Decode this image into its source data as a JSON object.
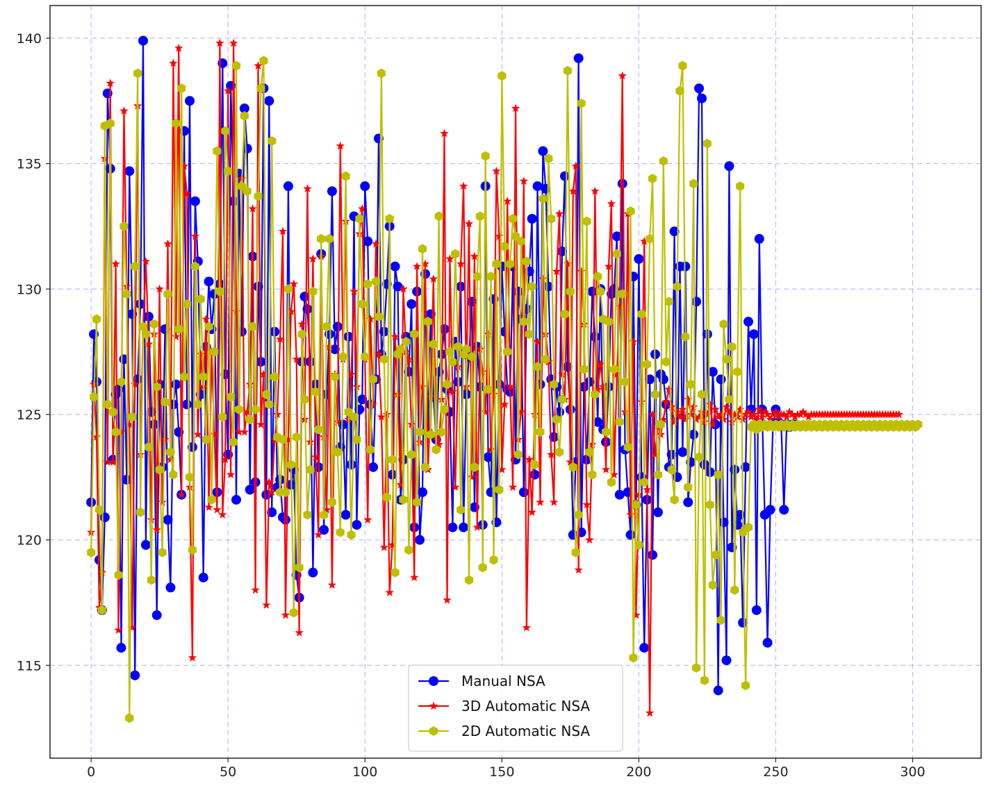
{
  "chart_data": {
    "type": "line",
    "title": "",
    "xlabel": "",
    "ylabel": "",
    "xlim": [
      -15,
      325
    ],
    "ylim": [
      111.3,
      141.3
    ],
    "xticks": [
      0,
      50,
      100,
      150,
      200,
      250,
      300
    ],
    "yticks": [
      115,
      120,
      125,
      130,
      135,
      140
    ],
    "grid": true,
    "legend_position": "lower-center",
    "series": [
      {
        "name": "Manual NSA",
        "color": "#0000ff",
        "marker": "circle",
        "values": [
          121.5,
          128.2,
          126.3,
          119.2,
          117.2,
          120.9,
          137.8,
          134.8,
          123.2,
          125.8,
          126.0,
          115.7,
          127.2,
          122.4,
          134.7,
          129.0,
          114.6,
          126.4,
          129.4,
          139.9,
          119.8,
          128.9,
          125.1,
          124.6,
          117.0,
          126.2,
          122.9,
          128.4,
          120.8,
          118.1,
          125.4,
          126.2,
          124.3,
          121.8,
          136.3,
          125.4,
          137.5,
          123.7,
          133.5,
          131.1,
          125.8,
          118.5,
          127.7,
          130.3,
          128.4,
          129.8,
          121.9,
          130.2,
          139.0,
          126.6,
          123.4,
          138.1,
          133.5,
          121.6,
          134.6,
          128.3,
          137.2,
          135.6,
          122.0,
          131.3,
          122.3,
          130.1,
          127.1,
          138.0,
          121.8,
          137.5,
          121.1,
          128.3,
          122.1,
          122.4,
          120.9,
          120.8,
          134.1,
          122.2,
          122.8,
          118.6,
          117.7,
          127.1,
          129.7,
          129.2,
          127.1,
          118.7,
          126.2,
          122.9,
          131.4,
          120.4,
          125.8,
          128.2,
          133.9,
          127.6,
          128.5,
          123.7,
          124.6,
          121.0,
          128.1,
          123.0,
          132.9,
          120.6,
          125.2,
          125.6,
          134.1,
          131.9,
          125.4,
          122.9,
          126.4,
          136.0,
          127.4,
          128.3,
          130.2,
          132.5,
          122.6,
          130.9,
          130.1,
          121.6,
          123.2,
          128.1,
          126.7,
          129.4,
          120.5,
          129.9,
          120.0,
          121.9,
          130.6,
          124.3,
          129.0,
          125.7,
          124.0,
          126.7,
          127.4,
          128.4,
          126.0,
          125.1,
          120.5,
          127.9,
          126.3,
          130.1,
          120.5,
          125.8,
          127.3,
          129.5,
          121.3,
          127.7,
          126.1,
          120.6,
          134.1,
          123.3,
          121.9,
          129.6,
          120.7,
          126.2,
          130.9,
          128.3,
          126.0,
          125.9,
          130.9,
          123.2,
          129.9,
          128.8,
          121.9,
          129.2,
          130.7,
          132.8,
          122.6,
          134.1,
          126.2,
          135.5,
          134.0,
          130.1,
          126.4,
          124.1,
          126.1,
          125.1,
          131.5,
          134.5,
          126.9,
          125.2,
          120.2,
          123.1,
          139.2,
          120.3,
          126.1,
          123.2,
          126.3,
          129.9,
          128.1,
          124.7,
          130.0,
          124.4,
          123.9,
          126.1,
          129.8,
          130.0,
          132.1,
          121.8,
          134.2,
          123.6,
          121.9,
          120.2,
          130.5,
          121.4,
          131.2,
          122.5,
          115.7,
          121.6,
          126.4,
          119.4,
          127.4,
          121.1,
          126.6,
          126.4,
          125.4,
          122.9,
          123.4,
          132.3,
          122.5,
          130.9,
          123.5,
          130.9,
          121.5,
          123.1,
          124.2,
          129.5,
          138.0,
          137.6,
          123.0,
          128.2,
          122.7,
          126.7,
          124.6,
          114.0,
          126.4,
          120.7,
          115.2,
          134.9,
          119.7,
          122.8,
          120.6,
          121.0,
          116.7,
          122.9,
          128.7,
          125.2,
          128.2,
          117.2,
          132.0,
          125.2,
          121.0,
          115.9,
          121.2,
          124.6,
          125.2,
          124.7,
          124.6,
          121.2,
          124.6,
          124.5,
          124.6,
          124.6
        ]
      },
      {
        "name": "3D Automatic NSA",
        "color": "#ff0000",
        "marker": "star",
        "values": [
          120.3,
          126.2,
          124.1,
          117.3,
          118.7,
          135.2,
          123.1,
          138.2,
          123.1,
          131.0,
          116.4,
          124.3,
          137.1,
          130.1,
          124.6,
          116.5,
          126.2,
          137.3,
          123.4,
          128.5,
          131.1,
          127.8,
          120.8,
          128.2,
          120.4,
          130.0,
          121.5,
          124.0,
          131.8,
          123.2,
          139.0,
          128.1,
          139.6,
          121.8,
          134.9,
          133.8,
          122.1,
          115.3,
          132.1,
          124.2,
          127.4,
          126.1,
          128.8,
          121.3,
          127.5,
          124.2,
          121.2,
          139.8,
          121.0,
          123.2,
          137.9,
          122.6,
          139.8,
          129.1,
          124.3,
          134.4,
          124.3,
          125.1,
          126.2,
          133.2,
          118.0,
          138.9,
          124.6,
          126.6,
          117.4,
          122.3,
          121.9,
          124.0,
          125.0,
          128.0,
          132.3,
          117.0,
          124.0,
          129.1,
          130.2,
          127.2,
          116.3,
          128.6,
          124.8,
          134.0,
          123.9,
          131.2,
          123.3,
          120.2,
          131.3,
          124.1,
          121.2,
          127.7,
          118.2,
          126.6,
          124.7,
          135.7,
          127.2,
          132.7,
          124.8,
          126.6,
          129.9,
          126.1,
          132.2,
          133.2,
          127.2,
          120.8,
          128.8,
          125.4,
          131.8,
          127.4,
          124.9,
          119.7,
          125.0,
          117.9,
          119.8,
          128.1,
          125.8,
          122.2,
          130.0,
          127.5,
          127.2,
          124.6,
          118.5,
          130.9,
          123.9,
          126.1,
          131.0,
          122.8,
          125.7,
          130.4,
          124.1,
          123.8,
          125.6,
          136.2,
          117.6,
          131.2,
          125.9,
          122.1,
          126.9,
          131.0,
          134.1,
          126.1,
          132.6,
          122.5,
          131.3,
          120.5,
          127.6,
          126.7,
          125.1,
          128.2,
          123.6,
          125.8,
          134.7,
          132.1,
          122.8,
          125.4,
          133.5,
          126.1,
          122.1,
          137.2,
          124.0,
          125.1,
          134.3,
          116.5,
          123.2,
          121.1,
          125.0,
          127.9,
          121.5,
          130.4,
          128.2,
          127.1,
          123.4,
          121.5,
          130.7,
          133.0,
          126.6,
          125.6,
          131.0,
          123.1,
          133.9,
          134.9,
          118.8,
          130.7,
          128.6,
          121.4,
          120.0,
          123.8,
          133.9,
          126.0,
          127.0,
          126.1,
          122.8,
          130.9,
          133.4,
          122.6,
          126.6,
          129.3,
          138.5,
          125.1,
          133.0,
          121.0,
          127.9,
          117.0,
          121.8,
          125.5,
          131.9,
          122.0,
          113.1,
          125.0,
          123.4,
          124.6,
          124.2,
          124.8,
          125.5,
          126.0,
          125.3,
          124.7,
          125.1,
          124.9,
          125.2,
          124.8,
          125.6,
          125.0,
          125.3,
          124.8,
          124.9,
          125.1,
          124.7,
          125.0,
          125.4,
          124.6,
          125.2,
          124.9,
          125.0,
          124.8,
          125.3,
          125.1,
          124.7,
          125.0,
          124.9,
          125.2,
          124.8,
          125.0,
          125.1,
          124.9,
          125.0,
          124.8,
          125.2,
          124.9,
          125.1,
          125.0,
          124.8,
          125.0,
          125.1,
          124.9,
          125.0,
          125.0,
          124.9,
          125.1,
          125.0,
          124.9,
          125.0,
          125.0,
          125.1,
          125.0,
          124.9,
          125.0,
          125.0,
          125.0,
          125.0,
          125.0,
          125.0,
          125.0,
          125.0,
          125.0,
          125.0,
          125.0,
          125.0,
          125.0,
          125.0,
          125.0,
          125.0,
          125.0,
          125.0,
          125.0,
          125.0,
          125.0,
          125.0,
          125.0,
          125.0,
          125.0,
          125.0,
          125.0,
          125.0,
          125.0,
          125.0,
          125.0,
          125.0,
          125.0
        ]
      },
      {
        "name": "2D Automatic NSA",
        "color": "#bfbf00",
        "marker": "hexagon",
        "values": [
          119.5,
          125.7,
          128.8,
          121.2,
          117.2,
          136.5,
          125.4,
          136.6,
          125.1,
          124.3,
          118.6,
          126.3,
          132.5,
          129.8,
          112.9,
          124.9,
          130.9,
          138.6,
          121.1,
          128.5,
          128.2,
          123.7,
          118.4,
          128.6,
          126.1,
          122.8,
          119.5,
          125.5,
          129.8,
          123.5,
          122.6,
          136.6,
          128.4,
          138.0,
          126.5,
          129.4,
          122.5,
          119.6,
          130.9,
          125.4,
          129.6,
          126.5,
          124.0,
          128.5,
          121.6,
          127.5,
          135.5,
          129.9,
          124.9,
          136.3,
          134.7,
          125.7,
          123.9,
          138.9,
          125.2,
          134.1,
          136.9,
          133.9,
          124.8,
          128.5,
          125.2,
          133.7,
          138.0,
          139.1,
          125.8,
          125.4,
          135.9,
          126.5,
          124.1,
          121.9,
          124.0,
          121.9,
          130.0,
          123.0,
          117.1,
          124.1,
          118.9,
          128.2,
          125.6,
          121.0,
          122.8,
          129.9,
          125.9,
          124.4,
          132.0,
          121.0,
          128.5,
          132.0,
          121.5,
          126.5,
          123.5,
          120.3,
          127.3,
          134.5,
          125.1,
          120.2,
          124.9,
          124.0,
          132.8,
          129.4,
          127.3,
          130.2,
          123.6,
          126.4,
          130.3,
          128.9,
          138.6,
          127.2,
          121.7,
          132.8,
          123.2,
          118.7,
          127.4,
          127.6,
          121.6,
          127.9,
          119.6,
          123.4,
          128.2,
          121.5,
          124.3,
          131.6,
          122.9,
          128.7,
          124.2,
          127.8,
          123.6,
          132.9,
          124.3,
          125.2,
          126.2,
          127.5,
          127.1,
          131.4,
          127.7,
          121.2,
          127.4,
          127.6,
          118.4,
          127.3,
          122.9,
          130.5,
          132.9,
          118.9,
          135.3,
          126.0,
          130.5,
          119.2,
          131.0,
          122.0,
          138.5,
          131.7,
          127.5,
          131.0,
          132.8,
          132.1,
          123.4,
          131.9,
          128.7,
          131.1,
          128.2,
          130.1,
          123.0,
          126.9,
          124.3,
          133.6,
          127.2,
          135.2,
          132.8,
          126.2,
          124.8,
          123.5,
          125.6,
          129.0,
          138.7,
          129.9,
          122.9,
          119.5,
          121.0,
          137.4,
          126.8,
          132.7,
          123.5,
          122.6,
          125.8,
          130.5,
          129.9,
          128.8,
          124.3,
          128.7,
          122.3,
          126.8,
          131.4,
          124.7,
          129.8,
          126.3,
          123.7,
          133.1,
          115.3,
          121.4,
          119.8,
          129.0,
          122.3,
          127.0,
          132.0,
          134.4,
          125.8,
          122.6,
          124.6,
          135.1,
          127.1,
          129.5,
          122.8,
          121.6,
          130.1,
          137.9,
          138.9,
          128.1,
          122.1,
          126.2,
          134.2,
          114.9,
          123.3,
          125.8,
          114.4,
          135.8,
          121.4,
          118.2,
          119.4,
          122.6,
          116.8,
          128.6,
          127.2,
          125.6,
          127.7,
          118.0,
          126.7,
          134.1,
          120.3,
          114.2,
          120.5,
          124.5,
          124.6,
          124.4,
          124.6,
          124.5,
          124.6,
          124.5,
          124.6,
          124.5,
          124.6,
          124.5,
          124.6,
          124.5,
          124.6,
          124.5,
          124.6,
          124.5,
          124.6,
          124.5,
          124.6,
          124.5,
          124.6,
          124.5,
          124.6,
          124.5,
          124.6,
          124.5,
          124.6,
          124.5,
          124.6,
          124.5,
          124.6,
          124.5,
          124.6,
          124.5,
          124.6,
          124.5,
          124.6,
          124.5,
          124.6,
          124.5,
          124.6,
          124.5,
          124.6,
          124.5,
          124.6,
          124.5,
          124.6,
          124.5,
          124.6,
          124.5,
          124.6,
          124.5,
          124.6,
          124.5,
          124.6,
          124.5,
          124.6,
          124.5,
          124.6,
          124.5,
          124.6
        ]
      }
    ]
  }
}
